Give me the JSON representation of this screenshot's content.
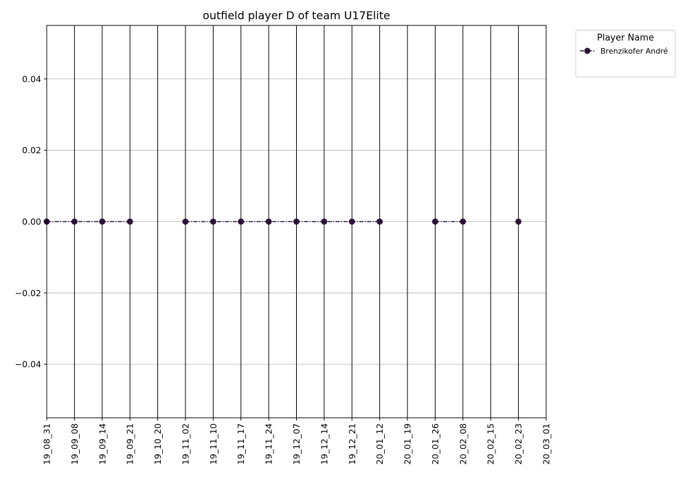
{
  "chart_data": {
    "type": "line",
    "title": "outfield player D of team U17Elite",
    "xlabel": "",
    "ylabel": "",
    "categories": [
      "19_08_31",
      "19_09_08",
      "19_09_14",
      "19_09_21",
      "19_10_20",
      "19_11_02",
      "19_11_10",
      "19_11_17",
      "19_11_24",
      "19_12_07",
      "19_12_14",
      "19_12_21",
      "20_01_12",
      "20_01_19",
      "20_01_26",
      "20_02_08",
      "20_02_15",
      "20_02_23",
      "20_03_01"
    ],
    "ylim": [
      -0.055,
      0.055
    ],
    "yticks": [
      "0.04",
      "0.02",
      "0.00",
      "−0.02",
      "−0.04"
    ],
    "ytick_values": [
      0.04,
      0.02,
      0.0,
      -0.02,
      -0.04
    ],
    "grid": true,
    "series": [
      {
        "name": "Brenzikofer André",
        "color": "#2d1238",
        "line_style": "dash-dot",
        "marker": "circle",
        "values": [
          0,
          0,
          0,
          0,
          null,
          0,
          0,
          0,
          0,
          0,
          0,
          0,
          0,
          null,
          0,
          0,
          null,
          0,
          null
        ]
      }
    ],
    "legend": {
      "title": "Player Name",
      "placement": "outside-top-right"
    }
  }
}
